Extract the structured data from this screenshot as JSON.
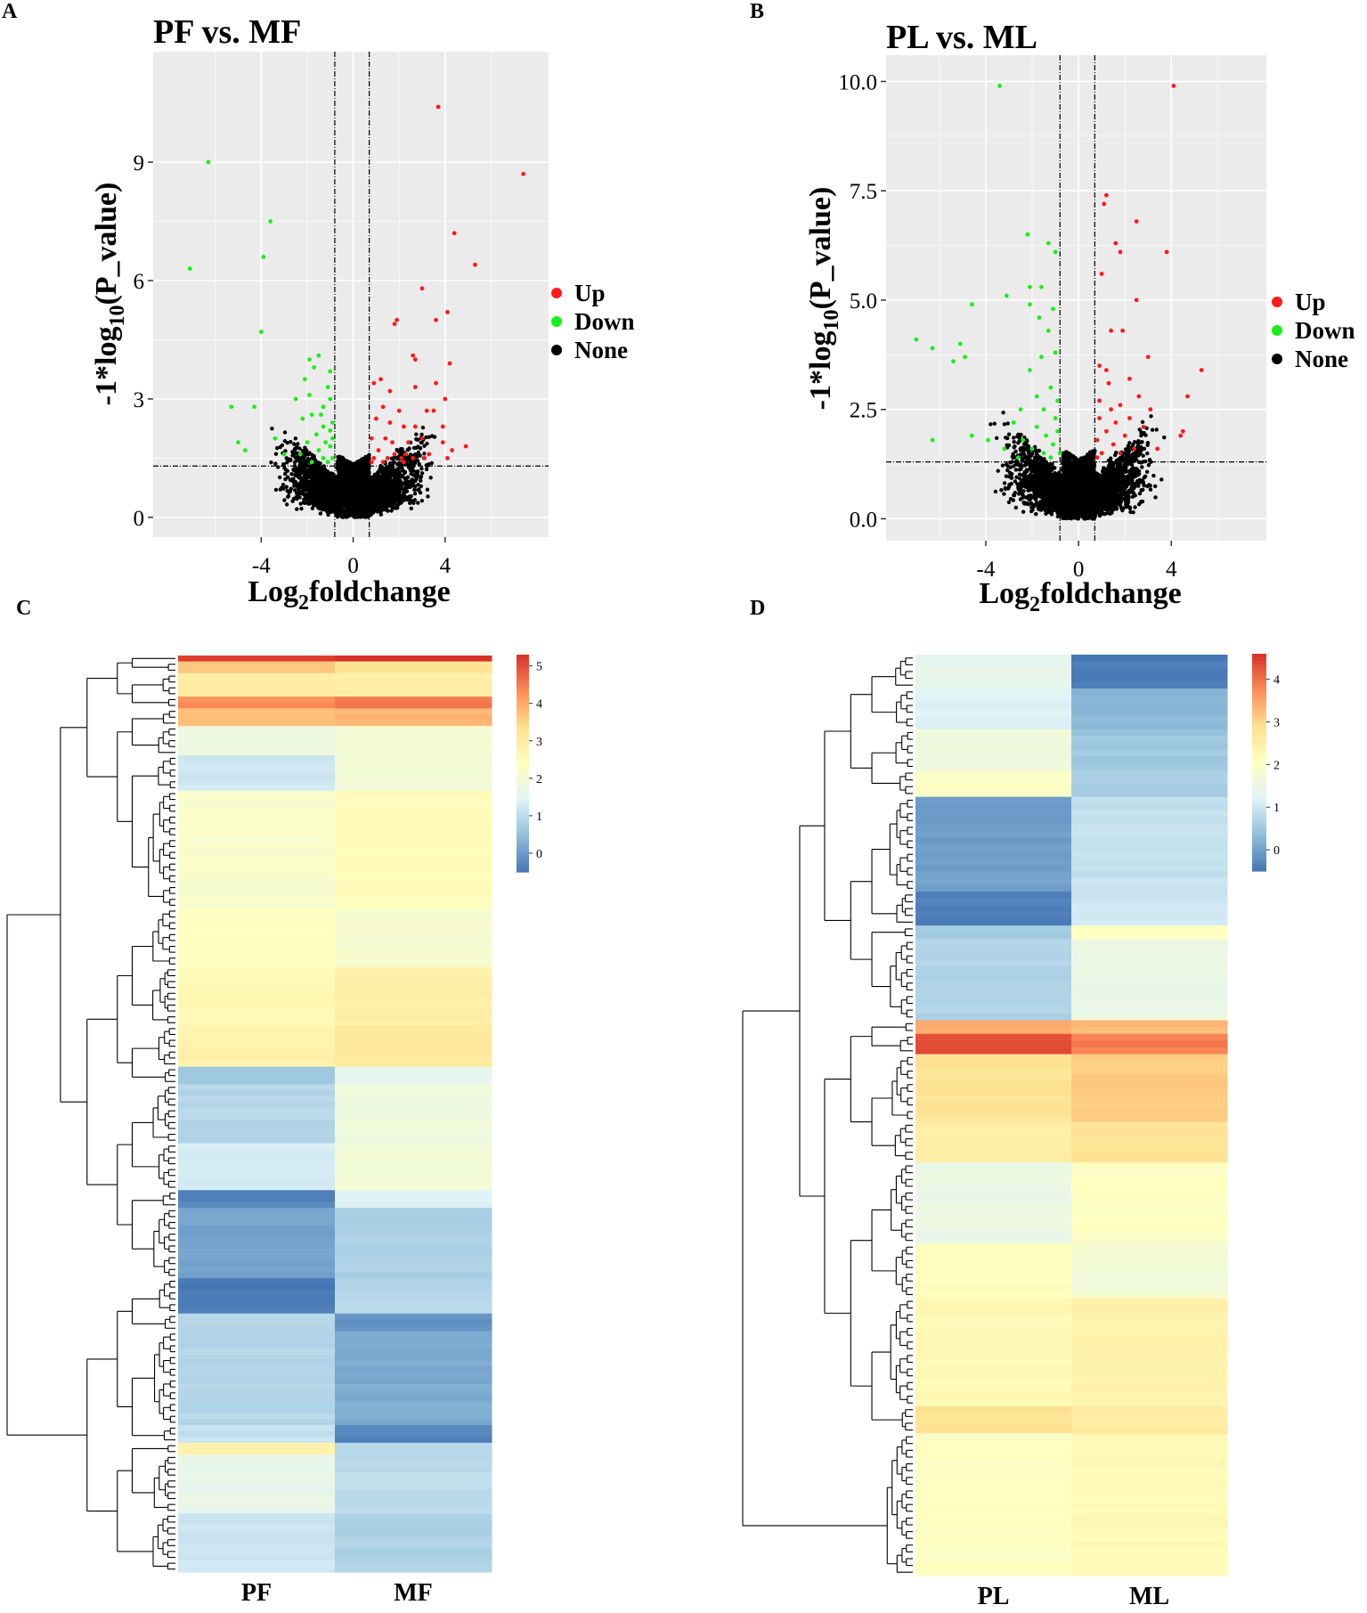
{
  "panel_letters": {
    "A": "A",
    "B": "B",
    "C": "C",
    "D": "D"
  },
  "chart_data": [
    {
      "id": "A",
      "type": "scatter",
      "title": "PF vs. MF",
      "xlabel": "Log2foldchange",
      "ylabel": "-1*log10(P_value)",
      "xlim": [
        -8.7,
        8.5
      ],
      "ylim": [
        -0.5,
        11.8
      ],
      "xticks": [
        -4,
        0,
        4
      ],
      "xticklabels": [
        "-4",
        "0",
        "4"
      ],
      "yticks": [
        0,
        3,
        6,
        9
      ],
      "yticklabels": [
        "0",
        "3",
        "6",
        "9"
      ],
      "vlines": [
        -0.8,
        0.7
      ],
      "hline": 1.3,
      "legend": [
        {
          "label": "Up",
          "color": "#ff1a1a"
        },
        {
          "label": "Down",
          "color": "#1aee1a"
        },
        {
          "label": "None",
          "color": "#000000"
        }
      ],
      "up": [
        [
          3.7,
          10.4
        ],
        [
          7.4,
          8.7
        ],
        [
          4.4,
          7.2
        ],
        [
          5.3,
          6.4
        ],
        [
          3.0,
          5.8
        ],
        [
          4.1,
          5.2
        ],
        [
          3.6,
          5.0
        ],
        [
          1.9,
          5.0
        ],
        [
          1.8,
          4.9
        ],
        [
          2.6,
          4.1
        ],
        [
          2.7,
          4.0
        ],
        [
          4.2,
          3.9
        ],
        [
          1.2,
          3.5
        ],
        [
          0.9,
          3.4
        ],
        [
          1.6,
          3.2
        ],
        [
          2.7,
          3.3
        ],
        [
          3.6,
          3.4
        ],
        [
          4.0,
          3.0
        ],
        [
          1.3,
          2.8
        ],
        [
          2.0,
          2.7
        ],
        [
          3.2,
          2.7
        ],
        [
          3.5,
          2.7
        ],
        [
          1.0,
          2.5
        ],
        [
          1.6,
          2.4
        ],
        [
          2.2,
          2.3
        ],
        [
          2.7,
          2.3
        ],
        [
          3.9,
          2.3
        ],
        [
          0.8,
          2.0
        ],
        [
          1.4,
          2.0
        ],
        [
          1.7,
          1.9
        ],
        [
          2.4,
          1.9
        ],
        [
          3.0,
          2.0
        ],
        [
          3.9,
          1.9
        ],
        [
          1.1,
          1.7
        ],
        [
          1.8,
          1.6
        ],
        [
          2.3,
          1.6
        ],
        [
          3.3,
          1.6
        ],
        [
          4.3,
          1.7
        ],
        [
          4.9,
          1.8
        ],
        [
          0.9,
          1.5
        ],
        [
          1.5,
          1.5
        ],
        [
          2.1,
          1.5
        ],
        [
          2.6,
          1.5
        ],
        [
          3.1,
          1.5
        ],
        [
          4.1,
          1.5
        ],
        [
          0.8,
          1.4
        ],
        [
          1.3,
          1.4
        ],
        [
          2.2,
          1.4
        ]
      ],
      "down": [
        [
          -6.3,
          9.0
        ],
        [
          -7.1,
          6.3
        ],
        [
          -3.6,
          7.5
        ],
        [
          -3.9,
          6.6
        ],
        [
          -4.0,
          4.7
        ],
        [
          -1.5,
          4.1
        ],
        [
          -1.9,
          4.0
        ],
        [
          -1.0,
          3.7
        ],
        [
          -1.7,
          3.8
        ],
        [
          -2.1,
          3.5
        ],
        [
          -1.1,
          3.3
        ],
        [
          -1.9,
          3.1
        ],
        [
          -5.3,
          2.8
        ],
        [
          -4.3,
          2.8
        ],
        [
          -2.5,
          3.0
        ],
        [
          -1.0,
          3.0
        ],
        [
          -1.3,
          2.8
        ],
        [
          -1.8,
          2.6
        ],
        [
          -2.2,
          2.5
        ],
        [
          -1.3,
          2.3
        ],
        [
          -1.0,
          2.2
        ],
        [
          -1.6,
          2.1
        ],
        [
          -2.0,
          1.9
        ],
        [
          -1.2,
          1.9
        ],
        [
          -5.0,
          1.9
        ],
        [
          -3.4,
          2.0
        ],
        [
          -4.7,
          1.7
        ],
        [
          -1.0,
          1.8
        ],
        [
          -1.5,
          1.7
        ],
        [
          -2.3,
          1.6
        ],
        [
          -3.0,
          1.6
        ],
        [
          -1.3,
          1.5
        ],
        [
          -0.9,
          1.5
        ],
        [
          -1.8,
          1.4
        ],
        [
          -1.1,
          1.4
        ],
        [
          -0.9,
          2.4
        ],
        [
          -1.4,
          2.6
        ],
        [
          -0.9,
          2.0
        ]
      ]
    },
    {
      "id": "B",
      "type": "scatter",
      "title": "PL vs. ML",
      "xlabel": "Log2foldchange",
      "ylabel": "-1*log10(P_value)",
      "xlim": [
        -8.3,
        8.1
      ],
      "ylim": [
        -0.5,
        10.6
      ],
      "xticks": [
        -4,
        0,
        4
      ],
      "xticklabels": [
        "-4",
        "0",
        "4"
      ],
      "yticks": [
        0.0,
        2.5,
        5.0,
        7.5,
        10.0
      ],
      "yticklabels": [
        "0.0",
        "2.5",
        "5.0",
        "7.5",
        "10.0"
      ],
      "vlines": [
        -0.8,
        0.7
      ],
      "hline": 1.3,
      "legend": [
        {
          "label": "Up",
          "color": "#ff1a1a"
        },
        {
          "label": "Down",
          "color": "#1aee1a"
        },
        {
          "label": "None",
          "color": "#000000"
        }
      ],
      "up": [
        [
          4.1,
          9.9
        ],
        [
          1.2,
          7.4
        ],
        [
          1.1,
          7.2
        ],
        [
          2.5,
          6.8
        ],
        [
          1.6,
          6.3
        ],
        [
          1.8,
          6.1
        ],
        [
          3.8,
          6.1
        ],
        [
          1.0,
          5.6
        ],
        [
          2.5,
          5.0
        ],
        [
          1.4,
          4.3
        ],
        [
          1.9,
          4.3
        ],
        [
          3.0,
          3.7
        ],
        [
          5.3,
          3.4
        ],
        [
          0.9,
          3.5
        ],
        [
          1.2,
          3.4
        ],
        [
          2.2,
          3.2
        ],
        [
          1.3,
          3.1
        ],
        [
          2.6,
          2.8
        ],
        [
          4.7,
          2.8
        ],
        [
          0.9,
          2.7
        ],
        [
          1.8,
          2.6
        ],
        [
          1.4,
          2.5
        ],
        [
          3.1,
          2.5
        ],
        [
          2.2,
          2.3
        ],
        [
          0.9,
          2.3
        ],
        [
          1.6,
          2.2
        ],
        [
          2.8,
          2.1
        ],
        [
          4.5,
          2.0
        ],
        [
          4.4,
          1.9
        ],
        [
          1.2,
          2.0
        ],
        [
          2.0,
          1.9
        ],
        [
          0.8,
          1.8
        ],
        [
          1.5,
          1.7
        ],
        [
          2.4,
          1.6
        ],
        [
          3.4,
          1.6
        ],
        [
          1.0,
          1.5
        ],
        [
          1.8,
          1.5
        ],
        [
          0.8,
          1.4
        ]
      ],
      "down": [
        [
          -3.4,
          9.9
        ],
        [
          -7.0,
          4.1
        ],
        [
          -6.3,
          3.9
        ],
        [
          -5.1,
          4.0
        ],
        [
          -4.9,
          3.7
        ],
        [
          -5.4,
          3.6
        ],
        [
          -4.6,
          4.9
        ],
        [
          -3.1,
          5.1
        ],
        [
          -2.2,
          6.5
        ],
        [
          -1.3,
          6.3
        ],
        [
          -1.0,
          6.1
        ],
        [
          -2.1,
          5.3
        ],
        [
          -1.6,
          5.3
        ],
        [
          -2.1,
          4.9
        ],
        [
          -1.7,
          4.6
        ],
        [
          -1.1,
          4.8
        ],
        [
          -1.3,
          4.3
        ],
        [
          -1.0,
          3.8
        ],
        [
          -1.6,
          3.7
        ],
        [
          -2.1,
          3.4
        ],
        [
          -1.2,
          3.0
        ],
        [
          -1.8,
          2.8
        ],
        [
          -0.9,
          2.7
        ],
        [
          -2.5,
          2.5
        ],
        [
          -1.5,
          2.5
        ],
        [
          -1.0,
          2.3
        ],
        [
          -2.8,
          2.2
        ],
        [
          -1.8,
          2.1
        ],
        [
          -0.9,
          2.0
        ],
        [
          -4.6,
          1.9
        ],
        [
          -3.9,
          1.8
        ],
        [
          -2.4,
          1.8
        ],
        [
          -1.4,
          1.9
        ],
        [
          -3.2,
          1.6
        ],
        [
          -1.1,
          1.7
        ],
        [
          -6.3,
          1.8
        ],
        [
          -2.0,
          1.6
        ],
        [
          -1.5,
          1.5
        ],
        [
          -0.8,
          1.5
        ],
        [
          -2.6,
          1.4
        ],
        [
          -1.2,
          1.4
        ]
      ]
    },
    {
      "id": "C",
      "type": "heatmap",
      "columns": [
        "PF",
        "MF"
      ],
      "colorbar_range": [
        -0.5,
        5.3
      ],
      "colorbar_ticks": [
        0,
        1,
        2,
        3,
        4,
        5
      ],
      "colorbar_ticklabels": [
        "0",
        "1",
        "2",
        "3",
        "4",
        "5"
      ],
      "colors": [
        "#4575b4",
        "#91bfdb",
        "#e0f3f8",
        "#ffffbf",
        "#fee090",
        "#fc8d59",
        "#d73027"
      ],
      "blocks": [
        {
          "rows": 1,
          "values": [
            5.2,
            5.3
          ]
        },
        {
          "rows": 2,
          "values": [
            3.6,
            3.3
          ]
        },
        {
          "rows": 4,
          "values": [
            3.0,
            2.9
          ]
        },
        {
          "rows": 2,
          "values": [
            4.3,
            4.5
          ]
        },
        {
          "rows": 3,
          "values": [
            3.7,
            3.9
          ]
        },
        {
          "rows": 5,
          "values": [
            1.8,
            2.1
          ]
        },
        {
          "rows": 6,
          "values": [
            1.2,
            2.0
          ]
        },
        {
          "rows": 20,
          "values": [
            2.2,
            2.5
          ]
        },
        {
          "rows": 10,
          "values": [
            2.4,
            2.1
          ]
        },
        {
          "rows": 10,
          "values": [
            2.6,
            2.9
          ]
        },
        {
          "rows": 7,
          "values": [
            2.8,
            3.1
          ]
        },
        {
          "rows": 3,
          "values": [
            0.7,
            1.6
          ]
        },
        {
          "rows": 10,
          "values": [
            0.9,
            1.9
          ]
        },
        {
          "rows": 8,
          "values": [
            1.3,
            2.0
          ]
        },
        {
          "rows": 3,
          "values": [
            -0.3,
            1.4
          ]
        },
        {
          "rows": 12,
          "values": [
            0.1,
            0.8
          ]
        },
        {
          "rows": 6,
          "values": [
            -0.4,
            0.9
          ]
        },
        {
          "rows": 3,
          "values": [
            0.9,
            -0.1
          ]
        },
        {
          "rows": 16,
          "values": [
            0.9,
            0.2
          ]
        },
        {
          "rows": 3,
          "values": [
            1.1,
            -0.3
          ]
        },
        {
          "rows": 2,
          "values": [
            2.8,
            0.9
          ]
        },
        {
          "rows": 10,
          "values": [
            1.7,
            1.0
          ]
        },
        {
          "rows": 10,
          "values": [
            1.2,
            0.8
          ]
        }
      ]
    },
    {
      "id": "D",
      "type": "heatmap",
      "columns": [
        "PL",
        "ML"
      ],
      "colorbar_range": [
        -0.5,
        4.6
      ],
      "colorbar_ticks": [
        0,
        1,
        2,
        3,
        4
      ],
      "colorbar_ticklabels": [
        "0",
        "1",
        "2",
        "3",
        "4"
      ],
      "colors": [
        "#4575b4",
        "#91bfdb",
        "#e0f3f8",
        "#ffffbf",
        "#fee090",
        "#fc8d59",
        "#d73027"
      ],
      "blocks": [
        {
          "rows": 5,
          "values": [
            1.4,
            -0.4
          ]
        },
        {
          "rows": 6,
          "values": [
            1.2,
            0.3
          ]
        },
        {
          "rows": 6,
          "values": [
            1.6,
            0.5
          ]
        },
        {
          "rows": 4,
          "values": [
            2.0,
            0.6
          ]
        },
        {
          "rows": 14,
          "values": [
            0.0,
            0.9
          ]
        },
        {
          "rows": 5,
          "values": [
            -0.4,
            1.0
          ]
        },
        {
          "rows": 2,
          "values": [
            0.6,
            2.0
          ]
        },
        {
          "rows": 12,
          "values": [
            0.7,
            1.5
          ]
        },
        {
          "rows": 2,
          "values": [
            3.4,
            3.3
          ]
        },
        {
          "rows": 3,
          "values": [
            4.3,
            3.9
          ]
        },
        {
          "rows": 10,
          "values": [
            2.8,
            3.1
          ]
        },
        {
          "rows": 6,
          "values": [
            2.5,
            2.8
          ]
        },
        {
          "rows": 12,
          "values": [
            1.5,
            2.0
          ]
        },
        {
          "rows": 8,
          "values": [
            2.1,
            1.7
          ]
        },
        {
          "rows": 16,
          "values": [
            2.2,
            2.4
          ]
        },
        {
          "rows": 4,
          "values": [
            2.8,
            2.6
          ]
        },
        {
          "rows": 21,
          "values": [
            2.0,
            2.2
          ]
        }
      ]
    }
  ]
}
